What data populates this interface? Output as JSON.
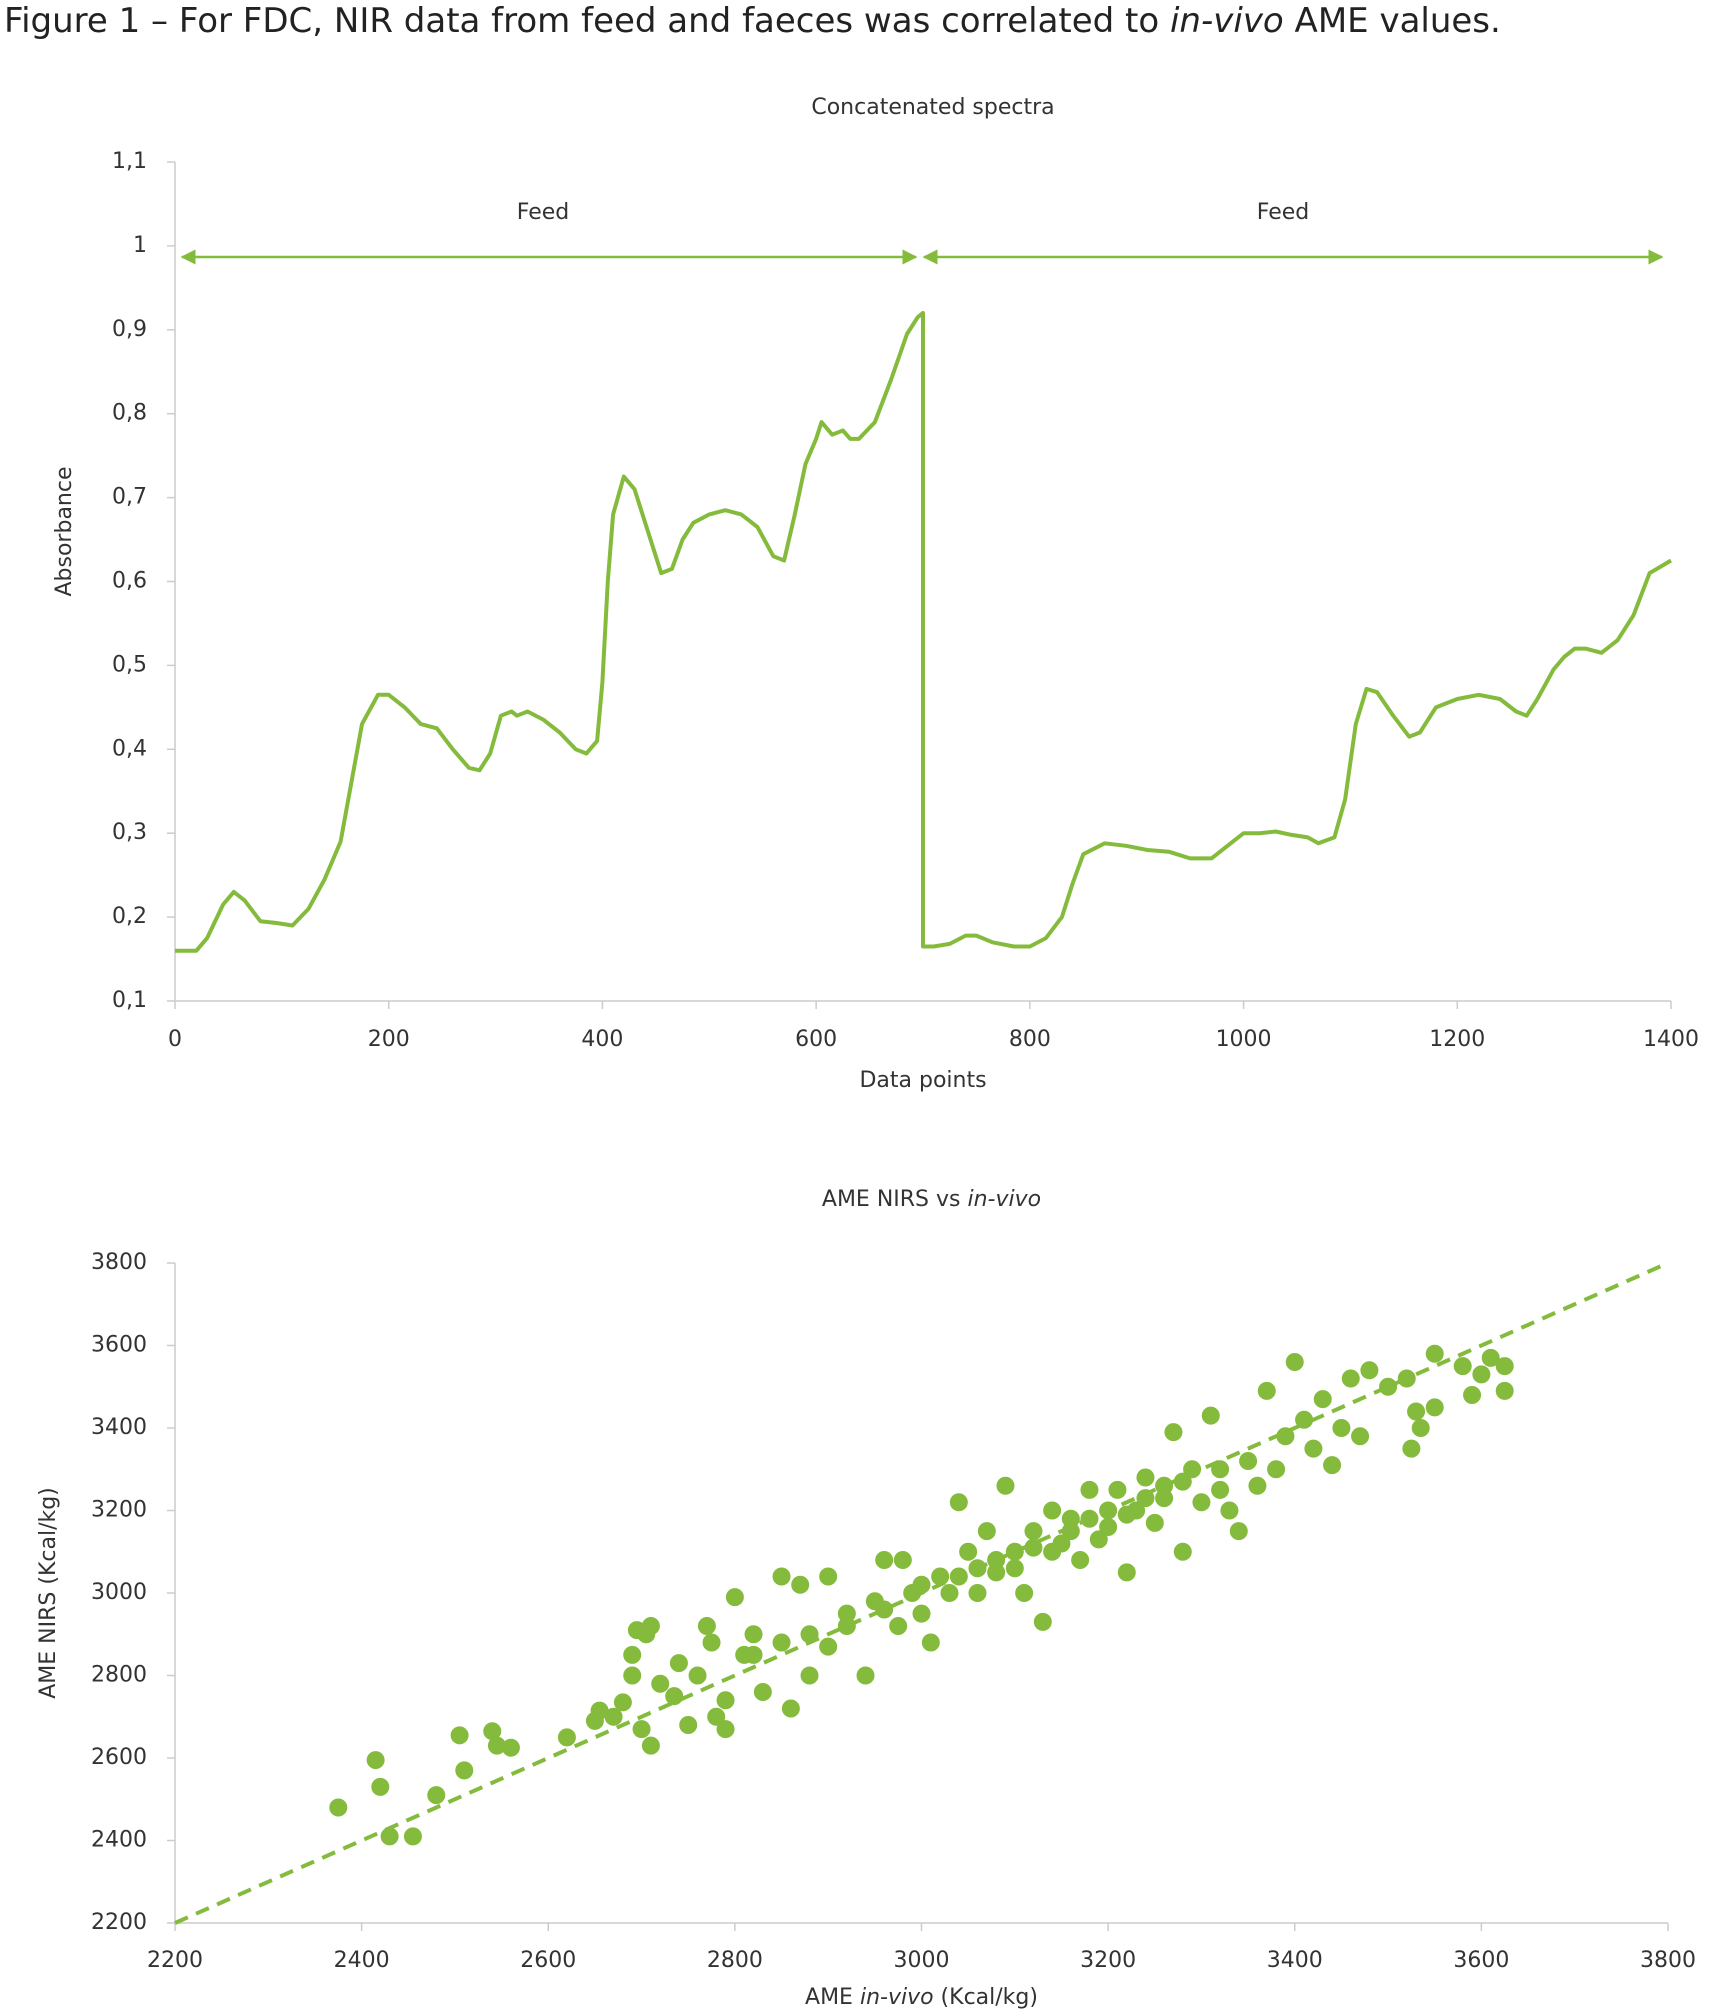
{
  "figure_title": [
    "Figure 1 – For FDC, NIR data from feed and faeces was correlated to ",
    "in-vivo",
    " AME values."
  ],
  "chart_data": [
    {
      "type": "line",
      "title": [
        "Concatenated spectra"
      ],
      "xlabel": [
        "Data points"
      ],
      "ylabel": "Absorbance",
      "annotations": [
        "Feed",
        "Feed"
      ],
      "xlim": [
        0,
        1400
      ],
      "xticks": [
        0,
        200,
        400,
        600,
        800,
        1000,
        1200,
        1400
      ],
      "ylim": [
        0.1,
        1.1
      ],
      "yticks": [
        {
          "value": 0.1,
          "label": "0,1"
        },
        {
          "value": 0.2,
          "label": "0,2"
        },
        {
          "value": 0.3,
          "label": "0,3"
        },
        {
          "value": 0.4,
          "label": "0,4"
        },
        {
          "value": 0.5,
          "label": "0,5"
        },
        {
          "value": 0.6,
          "label": "0,6"
        },
        {
          "value": 0.7,
          "label": "0,7"
        },
        {
          "value": 0.8,
          "label": "0,8"
        },
        {
          "value": 0.9,
          "label": "0,9"
        },
        1,
        {
          "value": 1.1,
          "label": "1,1"
        }
      ],
      "grid": false,
      "x": [
        0,
        20,
        30,
        45,
        55,
        65,
        80,
        95,
        110,
        125,
        140,
        155,
        165,
        175,
        190,
        200,
        215,
        230,
        245,
        260,
        275,
        285,
        295,
        305,
        315,
        320,
        330,
        345,
        360,
        375,
        385,
        395,
        400,
        405,
        410,
        420,
        430,
        445,
        455,
        465,
        475,
        485,
        500,
        515,
        530,
        545,
        560,
        570,
        580,
        590,
        600,
        605,
        615,
        625,
        632,
        640,
        655,
        670,
        685,
        695,
        700,
        700,
        710,
        725,
        740,
        750,
        765,
        785,
        800,
        815,
        830,
        840,
        850,
        870,
        890,
        910,
        930,
        950,
        970,
        985,
        1000,
        1015,
        1030,
        1045,
        1060,
        1070,
        1085,
        1095,
        1105,
        1115,
        1125,
        1140,
        1155,
        1165,
        1180,
        1200,
        1220,
        1240,
        1255,
        1265,
        1275,
        1290,
        1300,
        1310,
        1320,
        1335,
        1350,
        1365,
        1380,
        1400
      ],
      "series": [
        {
          "color": "#84bb3c",
          "values": [
            0.16,
            0.16,
            0.175,
            0.215,
            0.23,
            0.22,
            0.195,
            0.193,
            0.19,
            0.21,
            0.245,
            0.29,
            0.36,
            0.43,
            0.465,
            0.465,
            0.45,
            0.43,
            0.425,
            0.4,
            0.378,
            0.375,
            0.395,
            0.44,
            0.445,
            0.44,
            0.445,
            0.435,
            0.42,
            0.4,
            0.395,
            0.41,
            0.48,
            0.6,
            0.68,
            0.725,
            0.71,
            0.65,
            0.61,
            0.615,
            0.65,
            0.67,
            0.68,
            0.685,
            0.68,
            0.665,
            0.63,
            0.625,
            0.68,
            0.74,
            0.77,
            0.79,
            0.775,
            0.78,
            0.77,
            0.77,
            0.79,
            0.84,
            0.895,
            0.915,
            0.92,
            0.165,
            0.165,
            0.168,
            0.178,
            0.178,
            0.17,
            0.165,
            0.165,
            0.175,
            0.2,
            0.24,
            0.275,
            0.288,
            0.285,
            0.28,
            0.278,
            0.27,
            0.27,
            0.285,
            0.3,
            0.3,
            0.302,
            0.298,
            0.295,
            0.288,
            0.295,
            0.34,
            0.43,
            0.472,
            0.468,
            0.44,
            0.415,
            0.42,
            0.45,
            0.46,
            0.465,
            0.46,
            0.445,
            0.44,
            0.46,
            0.495,
            0.51,
            0.52,
            0.52,
            0.515,
            0.53,
            0.56,
            0.61,
            0.625
          ]
        }
      ]
    },
    {
      "type": "scatter",
      "title": [
        "AME NIRS vs ",
        "in-vivo"
      ],
      "xlabel": [
        "AME ",
        "in-vivo",
        " (Kcal/kg)"
      ],
      "ylabel": "AME NIRS (Kcal/kg)",
      "xlim": [
        2200,
        3800
      ],
      "xticks": [
        2200,
        2400,
        2600,
        2800,
        3000,
        3200,
        3400,
        3600,
        3800
      ],
      "ylim": [
        2200,
        3800
      ],
      "yticks": [
        2200,
        2400,
        2600,
        2800,
        3000,
        3200,
        3400,
        3600,
        3800
      ],
      "grid": false,
      "identity_line": true,
      "x": [
        2375,
        2415,
        2420,
        2430,
        2455,
        2480,
        2505,
        2510,
        2540,
        2545,
        2560,
        2620,
        2650,
        2655,
        2670,
        2680,
        2690,
        2690,
        2695,
        2700,
        2705,
        2710,
        2710,
        2720,
        2735,
        2740,
        2750,
        2760,
        2770,
        2775,
        2780,
        2790,
        2790,
        2800,
        2810,
        2820,
        2830,
        2850,
        2860,
        2870,
        2880,
        2900,
        2900,
        2920,
        2940,
        2950,
        2960,
        2975,
        2980,
        2990,
        3000,
        3010,
        3020,
        3030,
        3040,
        3050,
        3060,
        3070,
        3080,
        3090,
        3100,
        3110,
        3120,
        3130,
        3140,
        3150,
        3160,
        3170,
        3180,
        3190,
        3200,
        3210,
        3220,
        3230,
        3240,
        3250,
        3260,
        3270,
        3280,
        3290,
        3300,
        3310,
        3320,
        3330,
        3340,
        3350,
        3360,
        3370,
        3380,
        3390,
        3400,
        3410,
        3420,
        3430,
        3440,
        3450,
        3460,
        3470,
        3480,
        3500,
        3520,
        3525,
        3530,
        3535,
        3550,
        3550,
        3580,
        3590,
        3600,
        3610,
        3625,
        3625,
        2850,
        2880,
        2920,
        2960,
        3000,
        3040,
        3080,
        3120,
        3160,
        3200,
        3240,
        3280,
        3320,
        2820,
        3060,
        3140,
        3100,
        3180,
        3220,
        3260
      ],
      "series": [
        {
          "color": "#84bb3c",
          "values": [
            2480,
            2595,
            2530,
            2410,
            2410,
            2510,
            2655,
            2570,
            2665,
            2630,
            2625,
            2650,
            2690,
            2715,
            2700,
            2735,
            2800,
            2850,
            2910,
            2670,
            2900,
            2920,
            2630,
            2780,
            2750,
            2830,
            2680,
            2800,
            2920,
            2880,
            2700,
            2740,
            2670,
            2990,
            2850,
            2900,
            2760,
            3040,
            2720,
            3020,
            2800,
            3040,
            2870,
            2950,
            2800,
            2980,
            3080,
            2920,
            3080,
            3000,
            2950,
            2880,
            3040,
            3000,
            3220,
            3100,
            3060,
            3150,
            3050,
            3260,
            3100,
            3000,
            3150,
            2930,
            3200,
            3120,
            3180,
            3080,
            3250,
            3130,
            3160,
            3250,
            3050,
            3200,
            3280,
            3170,
            3230,
            3390,
            3100,
            3300,
            3220,
            3430,
            3250,
            3200,
            3150,
            3320,
            3260,
            3490,
            3300,
            3380,
            3560,
            3420,
            3350,
            3470,
            3310,
            3400,
            3520,
            3380,
            3540,
            3500,
            3520,
            3350,
            3440,
            3400,
            3580,
            3450,
            3550,
            3480,
            3530,
            3570,
            3550,
            3490,
            2880,
            2900,
            2920,
            2960,
            3020,
            3040,
            3080,
            3110,
            3150,
            3200,
            3230,
            3270,
            3300,
            2850,
            3000,
            3100,
            3060,
            3180,
            3190,
            3260
          ]
        }
      ]
    }
  ]
}
